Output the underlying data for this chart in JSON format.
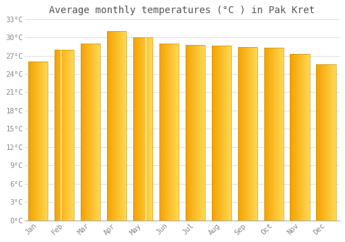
{
  "months": [
    "Jan",
    "Feb",
    "Mar",
    "Apr",
    "May",
    "Jun",
    "Jul",
    "Aug",
    "Sep",
    "Oct",
    "Nov",
    "Dec"
  ],
  "temperatures": [
    26.0,
    28.0,
    29.0,
    31.0,
    30.0,
    29.0,
    28.8,
    28.7,
    28.4,
    28.3,
    27.3,
    25.6
  ],
  "bar_color_left": "#F5A000",
  "bar_color_right": "#FFD850",
  "bar_edge_color": "#C8960A",
  "title": "Average monthly temperatures (°C ) in Pak Kret",
  "ylim": [
    0,
    33
  ],
  "yticks": [
    0,
    3,
    6,
    9,
    12,
    15,
    18,
    21,
    24,
    27,
    30,
    33
  ],
  "ytick_labels": [
    "0°C",
    "3°C",
    "6°C",
    "9°C",
    "12°C",
    "15°C",
    "18°C",
    "21°C",
    "24°C",
    "27°C",
    "30°C",
    "33°C"
  ],
  "background_color": "#ffffff",
  "plot_bg_color": "#ffffff",
  "grid_color": "#e0e0e0",
  "title_fontsize": 10,
  "tick_fontsize": 7.5,
  "font_family": "monospace",
  "bar_width": 0.75,
  "gradient_steps": 50
}
